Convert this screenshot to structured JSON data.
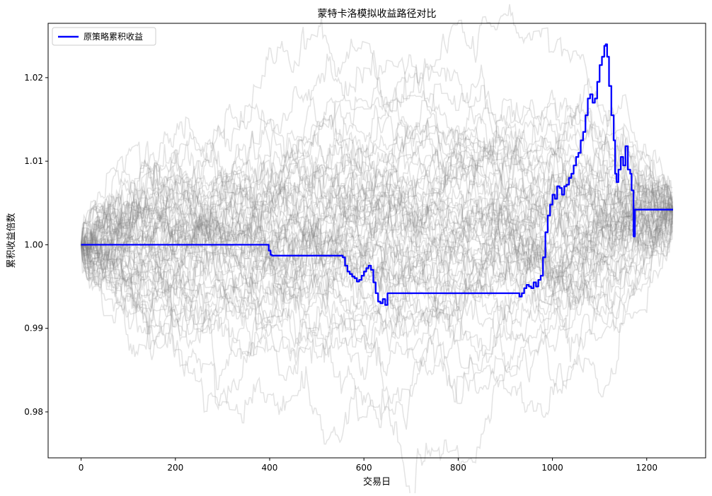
{
  "chart_data": {
    "type": "line",
    "title": "蒙特卡洛模拟收益路径对比",
    "xlabel": "交易日",
    "ylabel": "累积收益倍数",
    "xlim": [
      -70,
      1325
    ],
    "ylim": [
      0.9745,
      1.0265
    ],
    "xticks": [
      0,
      200,
      400,
      600,
      800,
      1000,
      1200
    ],
    "xtick_labels": [
      "0",
      "200",
      "400",
      "600",
      "800",
      "1000",
      "1200"
    ],
    "yticks": [
      0.98,
      0.99,
      1.0,
      1.01,
      1.02
    ],
    "ytick_labels": [
      "0.98",
      "0.99",
      "1.00",
      "1.01",
      "1.02"
    ],
    "grid": false,
    "legend_position": "top-left",
    "simulation_paths": {
      "count": 60,
      "length": 1256,
      "start_value": 1.0,
      "color": "#808080",
      "opacity": 0.22
    },
    "series": [
      {
        "name": "原策略累积收益",
        "color": "#0000ff",
        "x": [
          0,
          390,
          395,
          398,
          402,
          405,
          410,
          550,
          555,
          560,
          565,
          570,
          575,
          580,
          585,
          590,
          595,
          600,
          605,
          610,
          615,
          620,
          625,
          630,
          635,
          640,
          645,
          650,
          925,
          930,
          935,
          940,
          945,
          950,
          955,
          960,
          965,
          970,
          975,
          980,
          985,
          990,
          995,
          1000,
          1005,
          1010,
          1015,
          1020,
          1025,
          1030,
          1035,
          1040,
          1045,
          1050,
          1055,
          1060,
          1065,
          1070,
          1075,
          1080,
          1085,
          1090,
          1095,
          1100,
          1105,
          1110,
          1113,
          1116,
          1120,
          1125,
          1130,
          1133,
          1136,
          1140,
          1145,
          1150,
          1155,
          1160,
          1165,
          1168,
          1172,
          1175,
          1256
        ],
        "y": [
          1.0,
          1.0,
          1.0,
          0.9993,
          0.9988,
          0.9987,
          0.9987,
          0.9987,
          0.9985,
          0.9975,
          0.9968,
          0.9965,
          0.9962,
          0.996,
          0.9956,
          0.9958,
          0.9963,
          0.9968,
          0.9972,
          0.9975,
          0.997,
          0.9955,
          0.9942,
          0.9932,
          0.993,
          0.9935,
          0.9928,
          0.9942,
          0.9942,
          0.9938,
          0.9942,
          0.9948,
          0.9952,
          0.995,
          0.9948,
          0.9955,
          0.995,
          0.9958,
          0.9963,
          0.9985,
          1.0015,
          1.0035,
          1.0048,
          1.006,
          1.0055,
          1.007,
          1.0068,
          1.006,
          1.007,
          1.0072,
          1.008,
          1.0085,
          1.0095,
          1.0105,
          1.011,
          1.0125,
          1.0135,
          1.0155,
          1.0175,
          1.018,
          1.017,
          1.0175,
          1.0195,
          1.0215,
          1.0225,
          1.0238,
          1.024,
          1.0225,
          1.019,
          1.0155,
          1.0125,
          1.0085,
          1.0075,
          1.009,
          1.0105,
          1.0095,
          1.0118,
          1.009,
          1.0085,
          1.0065,
          1.001,
          1.0042,
          1.0042
        ]
      }
    ]
  }
}
